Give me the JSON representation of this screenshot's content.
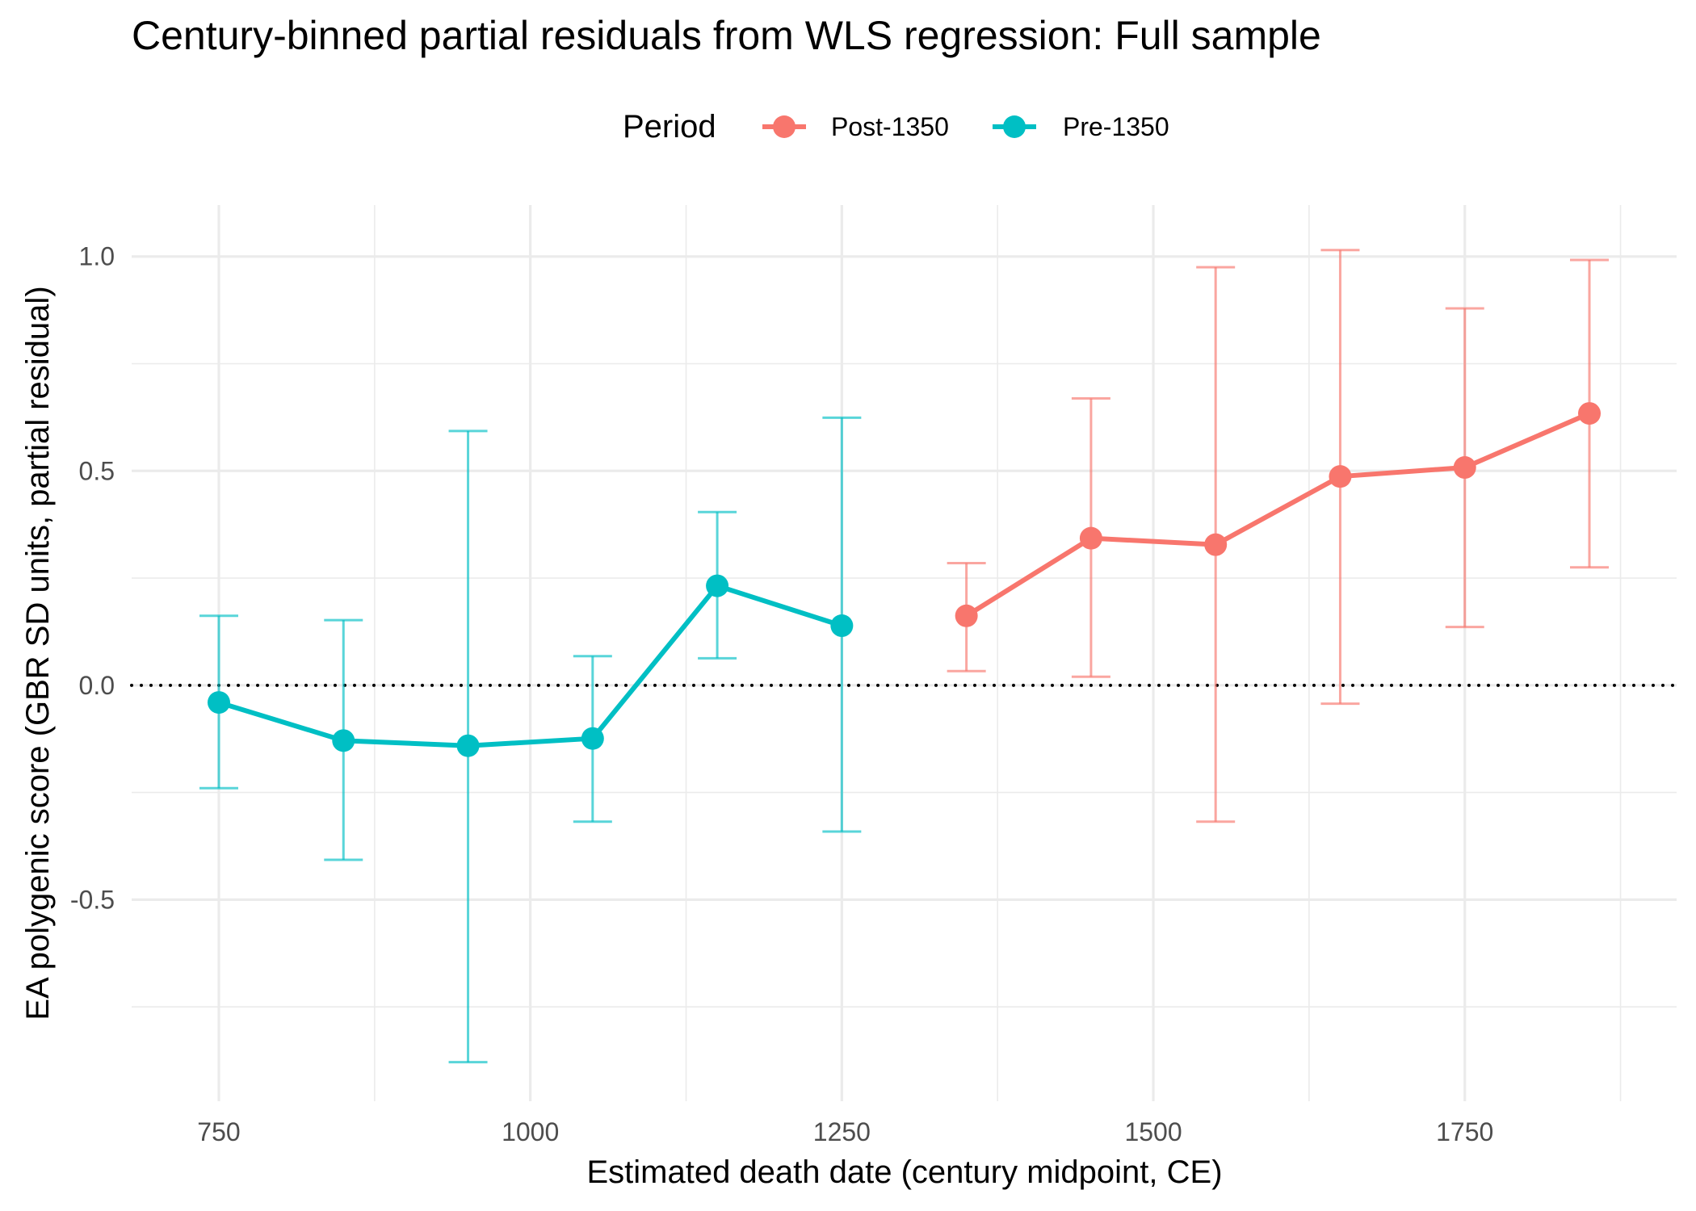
{
  "chart_data": {
    "type": "line",
    "title": "Century-binned partial residuals from WLS regression: Full sample",
    "xlabel": "Estimated death date (century midpoint, CE)",
    "ylabel": "EA polygenic score (GBR SD units, partial residual)",
    "legend": {
      "title": "Period",
      "position": "top"
    },
    "xlim": [
      680,
      1920
    ],
    "ylim": [
      -0.97,
      1.12
    ],
    "x_ticks": [
      750,
      1000,
      1250,
      1500,
      1750
    ],
    "x_tick_labels": [
      "750",
      "1000",
      "1250",
      "1500",
      "1750"
    ],
    "y_ticks": [
      1.0,
      0.5,
      0.0,
      -0.5
    ],
    "y_tick_labels": [
      "1.0",
      "0.5",
      "0.0",
      "-0.5"
    ],
    "grid": true,
    "reference_line": {
      "y": 0,
      "style": "dotted",
      "color": "#000000"
    },
    "series": [
      {
        "name": "Post-1350",
        "color": "#F8766D",
        "x": [
          1350,
          1450,
          1550,
          1650,
          1750,
          1850
        ],
        "y": [
          0.162,
          0.343,
          0.328,
          0.487,
          0.508,
          0.634
        ],
        "lower": [
          0.033,
          0.02,
          -0.318,
          -0.043,
          0.136,
          0.275
        ],
        "upper": [
          0.285,
          0.669,
          0.975,
          1.015,
          0.879,
          0.992
        ]
      },
      {
        "name": "Pre-1350",
        "color": "#00BFC4",
        "x": [
          750,
          850,
          950,
          1050,
          1150,
          1250
        ],
        "y": [
          -0.04,
          -0.129,
          -0.141,
          -0.124,
          0.232,
          0.139
        ],
        "lower": [
          -0.24,
          -0.407,
          -0.879,
          -0.318,
          0.063,
          -0.341
        ],
        "upper": [
          0.162,
          0.152,
          0.593,
          0.068,
          0.404,
          0.624
        ]
      }
    ]
  }
}
